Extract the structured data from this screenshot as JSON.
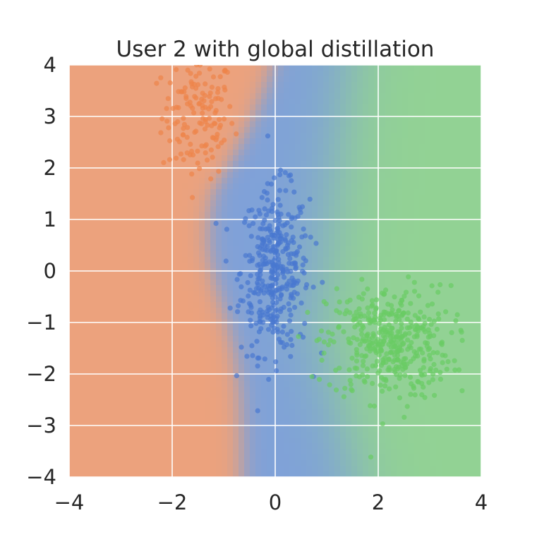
{
  "chart_data": {
    "type": "scatter",
    "title": "User 2 with global distillation",
    "xlabel": "",
    "ylabel": "",
    "xlim": [
      -4,
      4
    ],
    "ylim": [
      -4,
      4
    ],
    "xticks": [
      -4,
      -2,
      0,
      2,
      4
    ],
    "yticks": [
      -4,
      -3,
      -2,
      -1,
      0,
      1,
      2,
      3,
      4
    ],
    "xtick_labels": [
      "−4",
      "−2",
      "0",
      "2",
      "4"
    ],
    "ytick_labels": [
      "−4",
      "−3",
      "−2",
      "−1",
      "0",
      "1",
      "2",
      "3",
      "4"
    ],
    "grid": true,
    "background": "decision regions (orange left, blue center, green right)",
    "colors": {
      "orange_region": "#eca27d",
      "blue_region": "#7fa1d9",
      "green_region": "#92d294",
      "orange_points": "#ee854a",
      "blue_points": "#4878d0",
      "green_points": "#6acc64",
      "grid": "#ffffff",
      "text": "#262626"
    },
    "series": [
      {
        "color": "orange",
        "center": [
          -1.5,
          3.0
        ],
        "spread": [
          0.35,
          0.6
        ],
        "count": 140
      },
      {
        "color": "blue",
        "center": [
          0.0,
          0.0
        ],
        "spread": [
          0.33,
          0.8
        ],
        "count": 380
      },
      {
        "color": "green",
        "center": [
          2.2,
          -1.4
        ],
        "spread": [
          0.6,
          0.55
        ],
        "count": 420
      }
    ]
  }
}
